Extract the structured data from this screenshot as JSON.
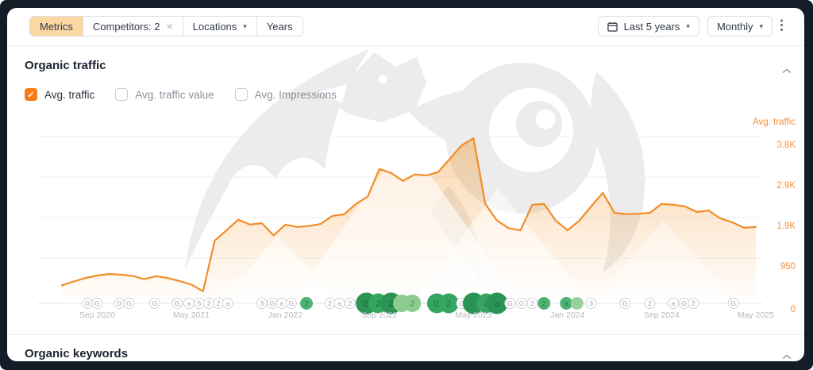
{
  "toolbar": {
    "filters": [
      {
        "label": "Metrics",
        "active": true
      },
      {
        "label": "Competitors: 2",
        "closable": true
      },
      {
        "label": "Locations",
        "dropdown": true
      },
      {
        "label": "Years"
      }
    ],
    "close_icon": "×",
    "caret_icon": "▾",
    "date_range": "Last 5 years",
    "granularity": "Monthly",
    "kebab_icon": "⋮"
  },
  "traffic_section": {
    "title": "Organic traffic",
    "toggles": [
      {
        "label": "Avg. traffic",
        "checked": true
      },
      {
        "label": "Avg. traffic value",
        "checked": false
      },
      {
        "label": "Avg. Impressions",
        "checked": false
      }
    ]
  },
  "keywords_section": {
    "title": "Organic keywords"
  },
  "chart_data": {
    "type": "area",
    "title": "Organic traffic",
    "y_axis_title": "Avg. traffic",
    "x_start": "Jun 2020",
    "x_end": "May 2025",
    "granularity": "monthly",
    "grid": true,
    "ylim": [
      0,
      3800
    ],
    "y_ticks": [
      {
        "value": 0,
        "label": "0"
      },
      {
        "value": 950,
        "label": "950"
      },
      {
        "value": 1900,
        "label": "1.9K"
      },
      {
        "value": 2850,
        "label": "2.9K"
      },
      {
        "value": 3800,
        "label": "3.8K"
      }
    ],
    "x_ticks": [
      {
        "i": 3,
        "label": "Sep 2020"
      },
      {
        "i": 11,
        "label": "May 2021"
      },
      {
        "i": 19,
        "label": "Jan 2022"
      },
      {
        "i": 27,
        "label": "Sep 2022"
      },
      {
        "i": 35,
        "label": "May 2023"
      },
      {
        "i": 43,
        "label": "Jan 2024"
      },
      {
        "i": 51,
        "label": "Sep 2024"
      },
      {
        "i": 59,
        "label": "May 2025"
      }
    ],
    "series": [
      {
        "name": "Avg. traffic",
        "color": "#f28c28",
        "values": [
          310,
          400,
          480,
          540,
          575,
          560,
          530,
          455,
          525,
          480,
          410,
          330,
          170,
          1360,
          1600,
          1850,
          1735,
          1770,
          1480,
          1735,
          1680,
          1700,
          1750,
          1940,
          1975,
          2220,
          2390,
          3040,
          2945,
          2760,
          2910,
          2890,
          2965,
          3280,
          3595,
          3760,
          2220,
          1830,
          1650,
          1600,
          2200,
          2220,
          1830,
          1600,
          1825,
          2160,
          2480,
          2010,
          1980,
          1990,
          2010,
          2220,
          2200,
          2160,
          2030,
          2065,
          1880,
          1790,
          1660,
          1680
        ]
      }
    ],
    "events": [
      {
        "m": 2.2,
        "t": "G",
        "k": "gray"
      },
      {
        "m": 3.0,
        "t": "G",
        "k": "gray"
      },
      {
        "m": 4.9,
        "t": "G",
        "k": "gray"
      },
      {
        "m": 5.7,
        "t": "G",
        "k": "gray"
      },
      {
        "m": 7.9,
        "t": "G",
        "k": "gray"
      },
      {
        "m": 9.8,
        "t": "G",
        "k": "gray"
      },
      {
        "m": 10.8,
        "t": "a",
        "k": "gray"
      },
      {
        "m": 11.7,
        "t": "5",
        "k": "gray"
      },
      {
        "m": 12.5,
        "t": "2",
        "k": "gray"
      },
      {
        "m": 13.3,
        "t": "2",
        "k": "gray"
      },
      {
        "m": 14.1,
        "t": "a",
        "k": "gray"
      },
      {
        "m": 17.0,
        "t": "3",
        "k": "gray"
      },
      {
        "m": 17.9,
        "t": "G",
        "k": "gray"
      },
      {
        "m": 18.7,
        "t": "a",
        "k": "gray"
      },
      {
        "m": 19.5,
        "t": "G",
        "k": "gray"
      },
      {
        "m": 20.8,
        "t": "2",
        "k": "green-sm"
      },
      {
        "m": 22.8,
        "t": "2",
        "k": "gray"
      },
      {
        "m": 23.6,
        "t": "a",
        "k": "gray"
      },
      {
        "m": 24.5,
        "t": "2",
        "k": "gray"
      },
      {
        "m": 25.9,
        "t": "G",
        "k": "green-dark-lg"
      },
      {
        "m": 26.9,
        "t": "2",
        "k": "green-lg"
      },
      {
        "m": 28.0,
        "t": "2",
        "k": "green-dark-lg"
      },
      {
        "m": 28.9,
        "t": "",
        "k": "green-light-lg"
      },
      {
        "m": 29.8,
        "t": "2",
        "k": "green-light-lg"
      },
      {
        "m": 31.9,
        "t": "G",
        "k": "green-lg"
      },
      {
        "m": 32.9,
        "t": "2",
        "k": "green-lg"
      },
      {
        "m": 34.0,
        "t": "G",
        "k": "gray"
      },
      {
        "m": 35.0,
        "t": "",
        "k": "green-dark-lg"
      },
      {
        "m": 36.1,
        "t": "a",
        "k": "green-lg"
      },
      {
        "m": 37.0,
        "t": "a",
        "k": "green-dark-lg"
      },
      {
        "m": 38.1,
        "t": "G",
        "k": "gray"
      },
      {
        "m": 39.1,
        "t": "G",
        "k": "gray"
      },
      {
        "m": 40.0,
        "t": "2",
        "k": "gray"
      },
      {
        "m": 41.0,
        "t": "2",
        "k": "green-sm"
      },
      {
        "m": 42.9,
        "t": "a",
        "k": "green-sm"
      },
      {
        "m": 43.8,
        "t": "",
        "k": "green-light-sm"
      },
      {
        "m": 45.0,
        "t": "3",
        "k": "gray"
      },
      {
        "m": 47.9,
        "t": "G",
        "k": "gray"
      },
      {
        "m": 50.0,
        "t": "2",
        "k": "gray"
      },
      {
        "m": 52.0,
        "t": "a",
        "k": "gray"
      },
      {
        "m": 52.9,
        "t": "G",
        "k": "gray"
      },
      {
        "m": 53.7,
        "t": "2",
        "k": "gray"
      },
      {
        "m": 57.1,
        "t": "G",
        "k": "gray"
      }
    ]
  },
  "colors": {
    "accent_orange": "#f28c28",
    "axis_label_orange": "#f0913f",
    "checkbox_orange": "#f67d15",
    "event_green": "#37a562",
    "event_green_dark": "#2b9455",
    "event_green_light": "#8dcc90",
    "date_label_gray": "#b3bac2"
  }
}
